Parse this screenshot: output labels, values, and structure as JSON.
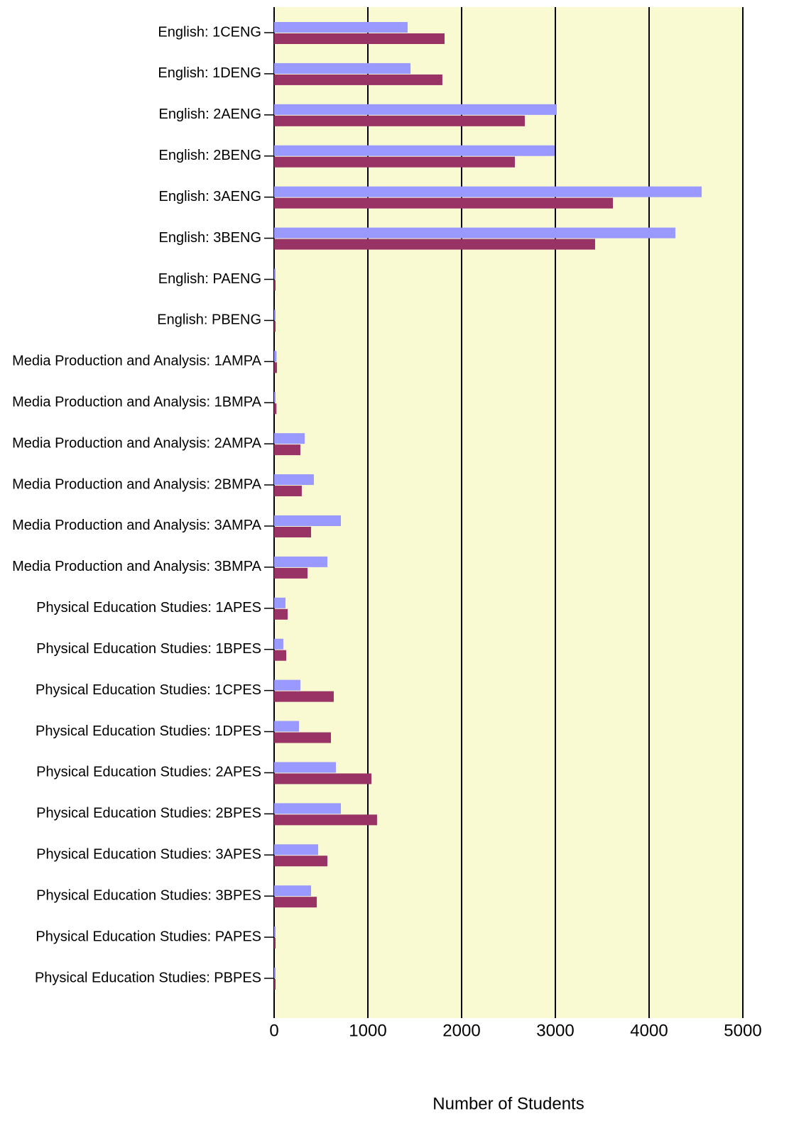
{
  "chart_data": {
    "type": "hbar",
    "x_label": "Number of Students",
    "categories": [
      "English: 1CENG",
      "English: 1DENG",
      "English: 2AENG",
      "English: 2BENG",
      "English: 3AENG",
      "English: 3BENG",
      "English: PAENG",
      "English: PBENG",
      "Media Production and Analysis: 1AMPA",
      "Media Production and Analysis: 1BMPA",
      "Media Production and Analysis: 2AMPA",
      "Media Production and Analysis: 2BMPA",
      "Media Production and Analysis: 3AMPA",
      "Media Production and Analysis: 3BMPA",
      "Physical Education Studies: 1APES",
      "Physical Education Studies: 1BPES",
      "Physical Education Studies: 1CPES",
      "Physical Education Studies: 1DPES",
      "Physical Education Studies: 2APES",
      "Physical Education Studies: 2BPES",
      "Physical Education Studies: 3APES",
      "Physical Education Studies: 3BPES",
      "Physical Education Studies: PAPES",
      "Physical Education Studies: PBPES"
    ],
    "series": [
      {
        "color": "#9999ff",
        "values": [
          1424,
          1455,
          3015,
          2992,
          4561,
          4280,
          15,
          15,
          25,
          15,
          326,
          424,
          712,
          568,
          121,
          98,
          280,
          265,
          659,
          712,
          470,
          394,
          15,
          15
        ]
      },
      {
        "color": "#993366",
        "values": [
          1818,
          1795,
          2674,
          2568,
          3614,
          3424,
          15,
          15,
          30,
          25,
          280,
          295,
          394,
          356,
          144,
          129,
          636,
          606,
          1038,
          1098,
          568,
          455,
          15,
          15
        ]
      }
    ],
    "xlim": [
      0,
      5000
    ],
    "xticks": [
      0,
      1000,
      2000,
      3000,
      4000,
      5000
    ],
    "grid": true,
    "background": "#f9f9d2"
  }
}
